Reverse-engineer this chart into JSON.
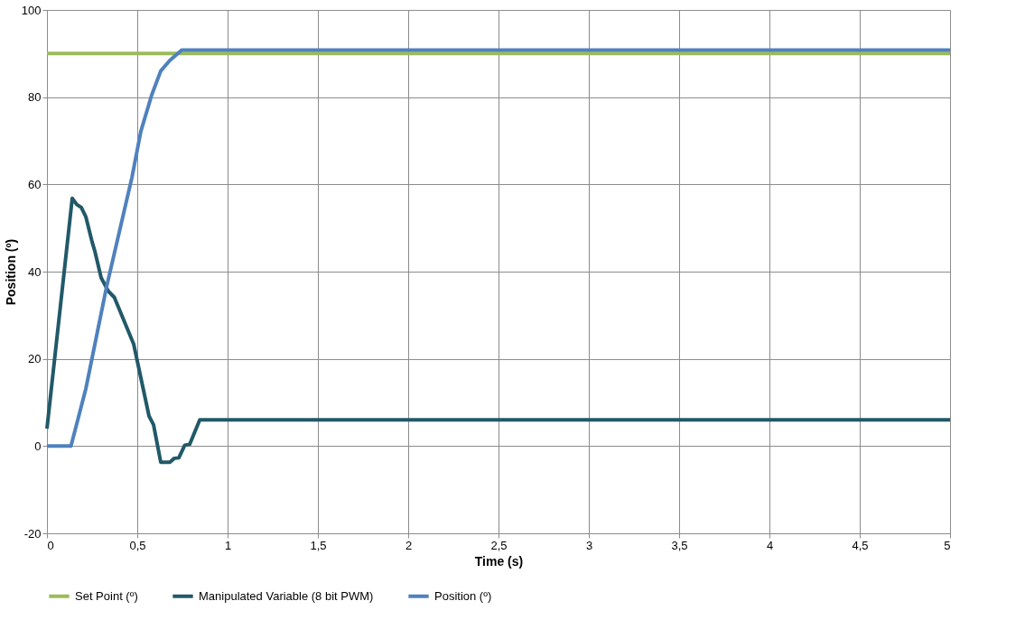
{
  "chart_data": {
    "type": "line",
    "xlabel": "Time (s)",
    "ylabel": "Position (º)",
    "xlim": [
      0,
      5
    ],
    "ylim": [
      -20,
      100
    ],
    "xticks": [
      0,
      {
        "value": 0.5,
        "label": "0,5"
      },
      1,
      {
        "value": 1.5,
        "label": "1,5"
      },
      2,
      {
        "value": 2.5,
        "label": "2,5"
      },
      3,
      {
        "value": 3.5,
        "label": "3,5"
      },
      4,
      {
        "value": 4.5,
        "label": "4,5"
      },
      5
    ],
    "yticks": [
      -20,
      0,
      20,
      40,
      60,
      80,
      100
    ],
    "grid": true,
    "legend": "bottom",
    "marker": "none",
    "line_style": "solid",
    "series": [
      {
        "name": "Set Point (º)",
        "color": "#9bbb59",
        "x": [
          0,
          5
        ],
        "values": [
          90,
          90
        ]
      },
      {
        "name": "Manipulated Variable (8 bit PWM)",
        "color": "#215968",
        "x": [
          0,
          0.14,
          0.165,
          0.19,
          0.215,
          0.25,
          0.265,
          0.3,
          0.34,
          0.373,
          0.48,
          0.565,
          0.59,
          0.63,
          0.68,
          0.705,
          0.73,
          0.763,
          0.79,
          0.846,
          5
        ],
        "values": [
          4,
          56.8,
          55.4,
          54.7,
          52.6,
          46.8,
          44.7,
          38.6,
          35.5,
          34.1,
          23.4,
          6.9,
          4.9,
          -3.7,
          -3.7,
          -2.8,
          -2.7,
          0.2,
          0.4,
          6,
          6
        ]
      },
      {
        "name": "Position (º)",
        "color": "#4f81bd",
        "x": [
          0,
          0.133,
          0.215,
          0.33,
          0.47,
          0.52,
          0.58,
          0.63,
          0.68,
          0.746,
          5
        ],
        "values": [
          0,
          0,
          13.1,
          36.5,
          61.5,
          72.2,
          80.5,
          86,
          88.4,
          90.8,
          90.8
        ]
      }
    ]
  }
}
